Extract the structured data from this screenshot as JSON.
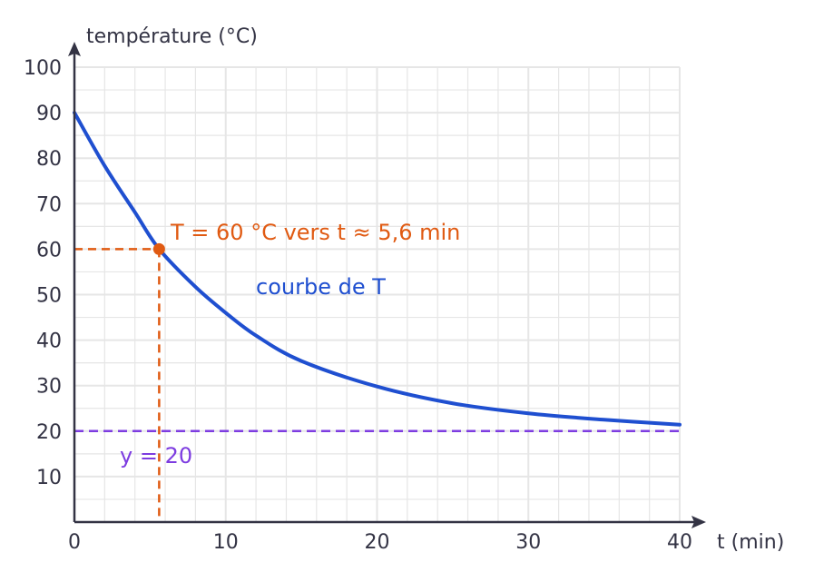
{
  "chart_data": {
    "type": "line",
    "xlabel": "t (min)",
    "ylabel": "température (°C)",
    "xlim": [
      0,
      40
    ],
    "ylim": [
      0,
      100
    ],
    "x_ticks": [
      0,
      10,
      20,
      30,
      40
    ],
    "y_ticks": [
      10,
      20,
      30,
      40,
      50,
      60,
      70,
      80,
      90,
      100
    ],
    "grid": true,
    "series": [
      {
        "name": "courbe de T",
        "color": "#1f4fd0",
        "x": [
          0,
          2,
          4,
          5.6,
          8,
          10,
          12,
          15,
          20,
          25,
          30,
          35,
          40
        ],
        "y": [
          90,
          78.3,
          68.1,
          60.0,
          51.7,
          46.0,
          41.0,
          35.4,
          29.8,
          26.1,
          23.9,
          22.5,
          21.4
        ]
      }
    ],
    "reference_lines": [
      {
        "type": "horizontal",
        "y": 20,
        "label": "y = 20",
        "color": "#7d3ce0"
      }
    ],
    "highlight": {
      "x": 5.6,
      "y": 60,
      "label": "T = 60 °C vers t ≈ 5,6 min",
      "color": "#e05a12"
    }
  }
}
